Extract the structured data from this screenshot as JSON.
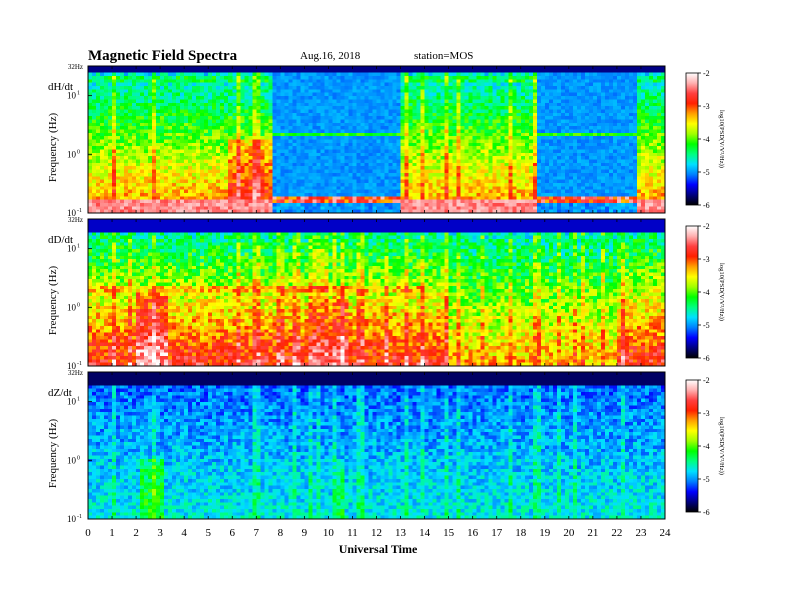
{
  "header": {
    "title": "Magnetic  Field  Spectra",
    "date": "Aug.16, 2018",
    "station": "station=MOS"
  },
  "chart_data": {
    "type": "heatmap",
    "x_axis": {
      "label": "Universal Time",
      "range": [
        0,
        24
      ],
      "ticks": [
        "0",
        "1",
        "2",
        "3",
        "4",
        "5",
        "6",
        "7",
        "8",
        "9",
        "10",
        "11",
        "12",
        "13",
        "14",
        "15",
        "16",
        "17",
        "18",
        "19",
        "20",
        "21",
        "22",
        "23",
        "24"
      ]
    },
    "y_axis": {
      "label": "Frequency  (Hz)",
      "scale": "log",
      "range_hz": [
        0.1,
        32
      ],
      "top_label": "32Hz",
      "tick_values": [
        0.1,
        1,
        10
      ],
      "tick_labels": [
        {
          "base": "10",
          "exp": "-1"
        },
        {
          "base": "10",
          "exp": "0"
        },
        {
          "base": "10",
          "exp": "1"
        }
      ]
    },
    "colorbar": {
      "label": "log10(PSD(V/V²/Hz))",
      "range": [
        -6,
        -2
      ],
      "ticks": [
        "-2",
        "-3",
        "-4",
        "-5",
        "-6"
      ],
      "colors": [
        "#000000",
        "#000080",
        "#0000ff",
        "#0080ff",
        "#00e0ff",
        "#00ff80",
        "#00ff00",
        "#a0ff00",
        "#ffff00",
        "#ffa000",
        "#ff2000",
        "#ff4040",
        "#ffb0b0",
        "#ffffff"
      ]
    },
    "panels": [
      {
        "id": "dH",
        "component": "dH/dt",
        "gaps_ut": [
          [
            7.75,
            13.0
          ],
          [
            18.75,
            22.9
          ]
        ],
        "active_ut": [
          [
            0,
            7.75
          ],
          [
            13.0,
            18.75
          ],
          [
            22.9,
            24
          ]
        ]
      },
      {
        "id": "dD",
        "component": "dD/dt"
      },
      {
        "id": "dZ",
        "component": "dZ/dt"
      }
    ]
  }
}
